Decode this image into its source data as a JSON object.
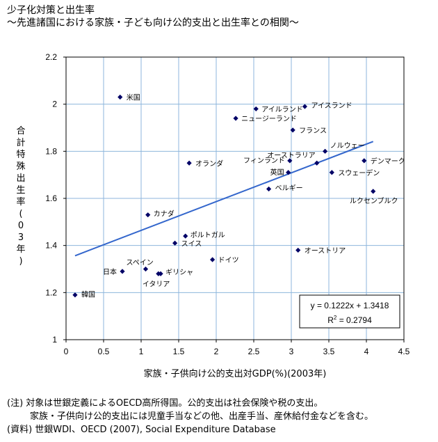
{
  "title": "少子化対策と出生率",
  "subtitle": "～先進諸国における家族・子ども向け公的支出と出生率との相関～",
  "notes": [
    "(注) 対象は世銀定義によるOECD高所得国。公的支出は社会保険や税の支出。",
    "家族・子供向け公的支出には児童手当などの他、出産手当、産休給付金などを含む。",
    "(資料) 世銀WDI、OECD (2007), Social Expenditure Database"
  ],
  "chart_data": {
    "type": "scatter",
    "xlabel": "家族・子供向け公的支出対GDP(%)(2003年)",
    "ylabel": "合計特殊出生率(03年)",
    "xlim": [
      0,
      4.5
    ],
    "ylim": [
      1,
      2.2
    ],
    "xticks": [
      "0",
      "0.5",
      "1",
      "1.5",
      "2",
      "2.5",
      "3",
      "3.5",
      "4",
      "4.5"
    ],
    "yticks": [
      "1",
      "1.2",
      "1.4",
      "1.6",
      "1.8",
      "2",
      "2.2"
    ],
    "grid": true,
    "marker_color": "#000066",
    "points": [
      {
        "label": "米国",
        "x": 0.72,
        "y": 2.03
      },
      {
        "label": "アイルランド",
        "x": 2.53,
        "y": 1.98
      },
      {
        "label": "アイスランド",
        "x": 3.18,
        "y": 1.99
      },
      {
        "label": "ニュージーランド",
        "x": 2.26,
        "y": 1.94
      },
      {
        "label": "フランス",
        "x": 3.02,
        "y": 1.89
      },
      {
        "label": "ノルウェー",
        "x": 3.45,
        "y": 1.8
      },
      {
        "label": "オーストラリア",
        "x": 3.34,
        "y": 1.75
      },
      {
        "label": "フィンランド",
        "x": 2.98,
        "y": 1.76
      },
      {
        "label": "デンマーク",
        "x": 3.97,
        "y": 1.76
      },
      {
        "label": "オランダ",
        "x": 1.64,
        "y": 1.75
      },
      {
        "label": "英国",
        "x": 2.96,
        "y": 1.71
      },
      {
        "label": "スウェーデン",
        "x": 3.54,
        "y": 1.71
      },
      {
        "label": "ベルギー",
        "x": 2.7,
        "y": 1.64
      },
      {
        "label": "ルクセンブルク",
        "x": 4.09,
        "y": 1.63
      },
      {
        "label": "カナダ",
        "x": 1.09,
        "y": 1.53
      },
      {
        "label": "ポルトガル",
        "x": 1.59,
        "y": 1.44
      },
      {
        "label": "スイス",
        "x": 1.45,
        "y": 1.41
      },
      {
        "label": "オーストリア",
        "x": 3.09,
        "y": 1.38
      },
      {
        "label": "ドイツ",
        "x": 1.95,
        "y": 1.34
      },
      {
        "label": "スペイン",
        "x": 1.06,
        "y": 1.3
      },
      {
        "label": "日本",
        "x": 0.75,
        "y": 1.29
      },
      {
        "label": "ギリシャ",
        "x": 1.26,
        "y": 1.28
      },
      {
        "label": "イタリア",
        "x": 1.23,
        "y": 1.28
      },
      {
        "label": "韓国",
        "x": 0.12,
        "y": 1.19
      }
    ],
    "trendline": {
      "slope": 0.1222,
      "intercept": 1.3418,
      "x_range": [
        0.12,
        4.09
      ],
      "color": "#3366cc",
      "equation_text": "y = 0.1222x + 1.3418",
      "r2_prefix": "R",
      "r2_suffix": " = 0.2794"
    }
  }
}
